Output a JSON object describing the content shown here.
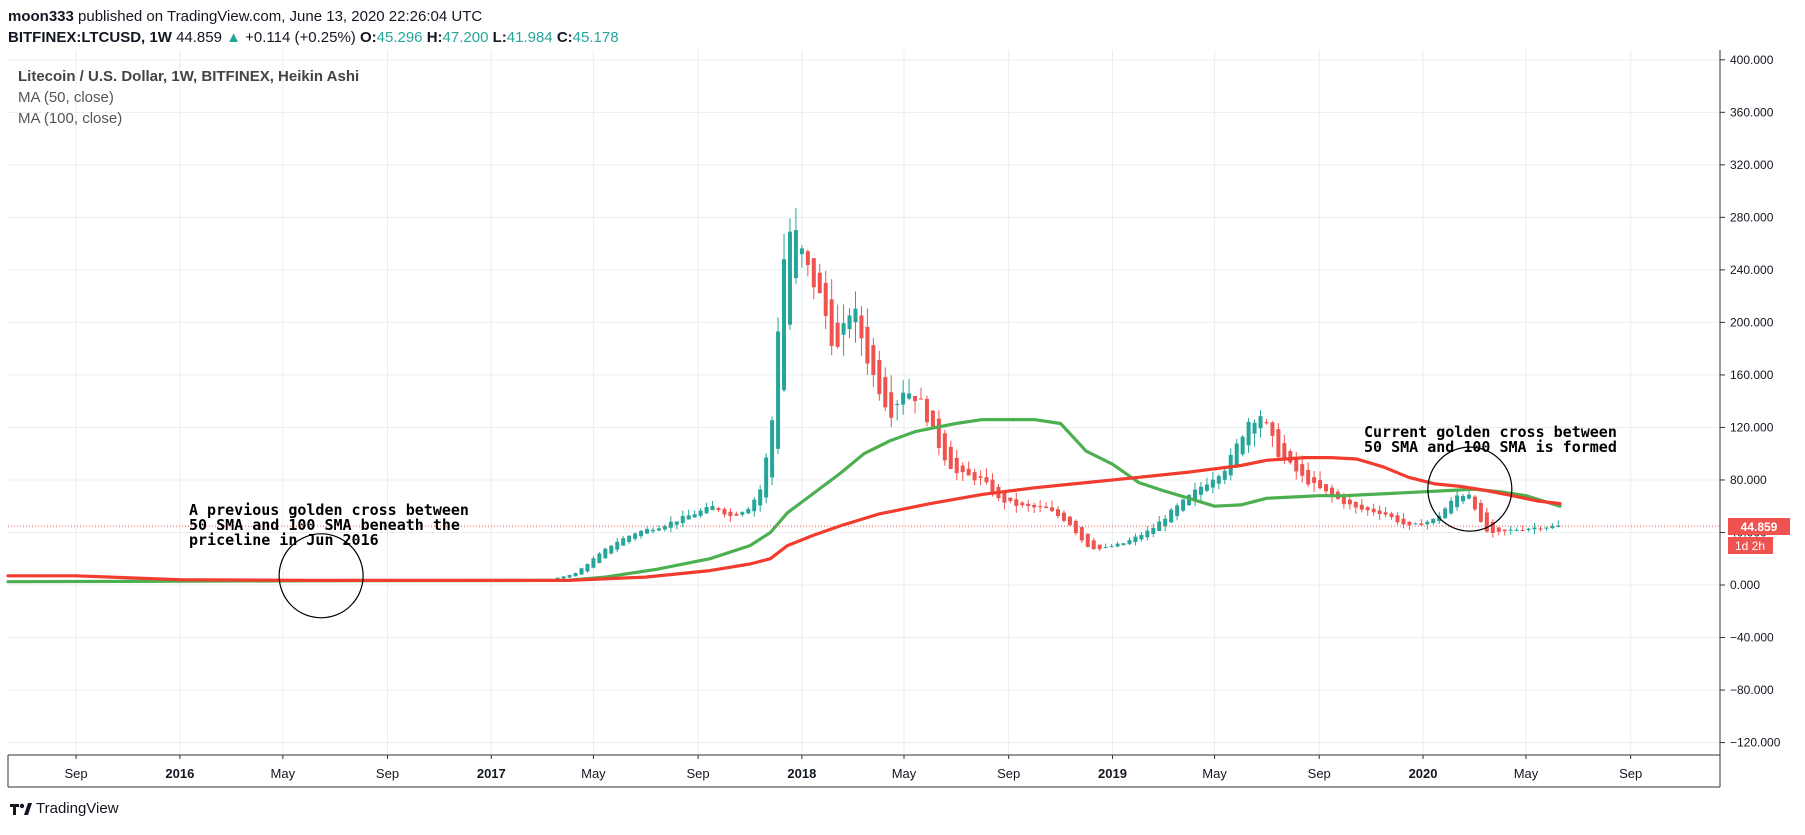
{
  "header": {
    "user": "moon333",
    "published_text": "published on TradingView.com, June 13, 2020 22:26:04 UTC",
    "symbol": "BITFINEX:LTCUSD, 1W",
    "last": "44.859",
    "change": "+0.114 (+0.25%)",
    "o_label": "O:",
    "o_value": "45.296",
    "h_label": "H:",
    "h_value": "47.200",
    "l_label": "L:",
    "l_value": "41.984",
    "c_label": "C:",
    "c_value": "45.178"
  },
  "legend": {
    "title": "Litecoin / U.S. Dollar, 1W, BITFINEX, Heikin Ashi",
    "ma50": "MA (50, close)",
    "ma100": "MA (100, close)"
  },
  "annotations": {
    "previous_cross": "A previous golden cross between\n50 SMA and 100 SMA beneath the\npriceline in Jun 2016",
    "current_cross": "Current golden cross between\n50 SMA and 100 SMA is formed"
  },
  "price_badge": {
    "value": "44.859",
    "countdown": "1d 2h"
  },
  "footer": {
    "brand": "TradingView"
  },
  "colors": {
    "up": "#26a69a",
    "down": "#ef5350",
    "ma50": "#4caf50",
    "ma100": "#f23c2f",
    "grid": "#e8eef2"
  },
  "chart_data": {
    "type": "candlestick",
    "title": "Litecoin / U.S. Dollar, 1W, BITFINEX, Heikin Ashi",
    "ylim": [
      -130,
      405
    ],
    "y_ticks": [
      400,
      360,
      320,
      280,
      240,
      200,
      160,
      120,
      80,
      40,
      0,
      -40,
      -80,
      -120
    ],
    "y_tick_labels": [
      "400.000",
      "360.000",
      "320.000",
      "280.000",
      "240.000",
      "200.000",
      "160.000",
      "120.000",
      "80.000",
      "40.000",
      "0.000",
      "−40.000",
      "−80.000",
      "−120.000"
    ],
    "x_range": [
      "2015-06-13",
      "2020-12-15"
    ],
    "x_ticks": [
      {
        "date": "2015-09-01",
        "label": "Sep",
        "bold": false
      },
      {
        "date": "2016-01-01",
        "label": "2016",
        "bold": true
      },
      {
        "date": "2016-05-01",
        "label": "May",
        "bold": false
      },
      {
        "date": "2016-09-01",
        "label": "Sep",
        "bold": false
      },
      {
        "date": "2017-01-01",
        "label": "2017",
        "bold": true
      },
      {
        "date": "2017-05-01",
        "label": "May",
        "bold": false
      },
      {
        "date": "2017-09-01",
        "label": "Sep",
        "bold": false
      },
      {
        "date": "2018-01-01",
        "label": "2018",
        "bold": true
      },
      {
        "date": "2018-05-01",
        "label": "May",
        "bold": false
      },
      {
        "date": "2018-09-01",
        "label": "Sep",
        "bold": false
      },
      {
        "date": "2019-01-01",
        "label": "2019",
        "bold": true
      },
      {
        "date": "2019-05-01",
        "label": "May",
        "bold": false
      },
      {
        "date": "2019-09-01",
        "label": "Sep",
        "bold": false
      },
      {
        "date": "2020-01-01",
        "label": "2020",
        "bold": true
      },
      {
        "date": "2020-05-01",
        "label": "May",
        "bold": false
      },
      {
        "date": "2020-09-01",
        "label": "Sep",
        "bold": false
      }
    ],
    "last_price": 44.859,
    "close_anchors": [
      [
        "2015-06-15",
        3.0
      ],
      [
        "2016-01-01",
        3.5
      ],
      [
        "2016-06-01",
        4.2
      ],
      [
        "2016-12-31",
        4.0
      ],
      [
        "2017-03-15",
        4.5
      ],
      [
        "2017-04-10",
        9.0
      ],
      [
        "2017-05-01",
        20
      ],
      [
        "2017-05-25",
        32
      ],
      [
        "2017-06-20",
        40
      ],
      [
        "2017-07-20",
        45
      ],
      [
        "2017-08-30",
        55
      ],
      [
        "2017-09-20",
        60
      ],
      [
        "2017-10-10",
        52
      ],
      [
        "2017-11-01",
        60
      ],
      [
        "2017-11-15",
        75
      ],
      [
        "2017-11-28",
        130
      ],
      [
        "2017-12-08",
        240
      ],
      [
        "2017-12-20",
        275
      ],
      [
        "2018-01-08",
        240
      ],
      [
        "2018-01-25",
        215
      ],
      [
        "2018-02-10",
        175
      ],
      [
        "2018-03-01",
        215
      ],
      [
        "2018-03-22",
        165
      ],
      [
        "2018-04-15",
        130
      ],
      [
        "2018-05-01",
        150
      ],
      [
        "2018-05-20",
        140
      ],
      [
        "2018-06-15",
        100
      ],
      [
        "2018-07-01",
        85
      ],
      [
        "2018-08-01",
        80
      ],
      [
        "2018-08-20",
        65
      ],
      [
        "2018-09-15",
        60
      ],
      [
        "2018-10-15",
        58
      ],
      [
        "2018-11-10",
        48
      ],
      [
        "2018-12-01",
        30
      ],
      [
        "2018-12-15",
        27
      ],
      [
        "2019-01-15",
        32
      ],
      [
        "2019-02-15",
        42
      ],
      [
        "2019-03-15",
        58
      ],
      [
        "2019-04-15",
        75
      ],
      [
        "2019-05-15",
        90
      ],
      [
        "2019-06-10",
        125
      ],
      [
        "2019-06-25",
        130
      ],
      [
        "2019-07-15",
        100
      ],
      [
        "2019-08-15",
        80
      ],
      [
        "2019-09-15",
        68
      ],
      [
        "2019-10-15",
        58
      ],
      [
        "2019-11-15",
        55
      ],
      [
        "2019-12-15",
        44
      ],
      [
        "2020-01-15",
        50
      ],
      [
        "2020-02-10",
        68
      ],
      [
        "2020-02-25",
        70
      ],
      [
        "2020-03-10",
        45
      ],
      [
        "2020-03-20",
        38
      ],
      [
        "2020-04-15",
        42
      ],
      [
        "2020-05-15",
        44
      ],
      [
        "2020-06-10",
        45
      ]
    ],
    "series": [
      {
        "name": "MA (50, close)",
        "color": "#4caf50",
        "points": [
          [
            "2015-06-13",
            2.5
          ],
          [
            "2016-06-01",
            3.2
          ],
          [
            "2017-04-01",
            3.5
          ],
          [
            "2017-05-15",
            6
          ],
          [
            "2017-07-15",
            12
          ],
          [
            "2017-09-15",
            20
          ],
          [
            "2017-11-01",
            30
          ],
          [
            "2017-11-25",
            40
          ],
          [
            "2017-12-15",
            55
          ],
          [
            "2018-01-15",
            70
          ],
          [
            "2018-02-15",
            85
          ],
          [
            "2018-03-15",
            100
          ],
          [
            "2018-04-15",
            110
          ],
          [
            "2018-05-15",
            117
          ],
          [
            "2018-07-01",
            123
          ],
          [
            "2018-08-01",
            126
          ],
          [
            "2018-09-01",
            126
          ],
          [
            "2018-10-01",
            126
          ],
          [
            "2018-11-01",
            123
          ],
          [
            "2018-12-01",
            102
          ],
          [
            "2019-01-01",
            92
          ],
          [
            "2019-02-01",
            78
          ],
          [
            "2019-03-01",
            72
          ],
          [
            "2019-04-01",
            66
          ],
          [
            "2019-05-01",
            60
          ],
          [
            "2019-06-01",
            61
          ],
          [
            "2019-07-01",
            66
          ],
          [
            "2019-08-01",
            67
          ],
          [
            "2019-09-01",
            68
          ],
          [
            "2019-10-01",
            68
          ],
          [
            "2019-11-01",
            69
          ],
          [
            "2019-12-01",
            70
          ],
          [
            "2020-01-01",
            71
          ],
          [
            "2020-02-01",
            72
          ],
          [
            "2020-03-01",
            73
          ],
          [
            "2020-04-01",
            71
          ],
          [
            "2020-05-01",
            68
          ],
          [
            "2020-06-10",
            60
          ]
        ]
      },
      {
        "name": "MA (100, close)",
        "color": "#f23c2f",
        "points": [
          [
            "2015-06-13",
            7
          ],
          [
            "2015-09-01",
            7
          ],
          [
            "2016-01-01",
            4
          ],
          [
            "2016-06-01",
            3.5
          ],
          [
            "2017-04-01",
            3.5
          ],
          [
            "2017-07-01",
            6
          ],
          [
            "2017-09-15",
            11
          ],
          [
            "2017-11-01",
            16
          ],
          [
            "2017-11-25",
            20
          ],
          [
            "2017-12-15",
            30
          ],
          [
            "2018-01-15",
            38
          ],
          [
            "2018-02-15",
            45
          ],
          [
            "2018-04-01",
            54
          ],
          [
            "2018-06-01",
            62
          ],
          [
            "2018-08-01",
            69
          ],
          [
            "2018-10-01",
            74
          ],
          [
            "2018-12-01",
            78
          ],
          [
            "2019-02-01",
            82
          ],
          [
            "2019-04-01",
            86
          ],
          [
            "2019-06-01",
            91
          ],
          [
            "2019-07-01",
            95
          ],
          [
            "2019-08-15",
            97
          ],
          [
            "2019-09-15",
            97
          ],
          [
            "2019-10-15",
            96
          ],
          [
            "2019-11-15",
            90
          ],
          [
            "2019-12-15",
            82
          ],
          [
            "2020-01-15",
            77
          ],
          [
            "2020-02-15",
            75
          ],
          [
            "2020-03-15",
            72
          ],
          [
            "2020-04-15",
            68
          ],
          [
            "2020-05-15",
            64
          ],
          [
            "2020-06-10",
            62
          ]
        ]
      }
    ],
    "highlights": [
      {
        "center": [
          "2016-06-15",
          7
        ],
        "label": "previous_cross"
      },
      {
        "center": [
          "2020-02-25",
          73
        ],
        "label": "current_cross"
      }
    ]
  }
}
